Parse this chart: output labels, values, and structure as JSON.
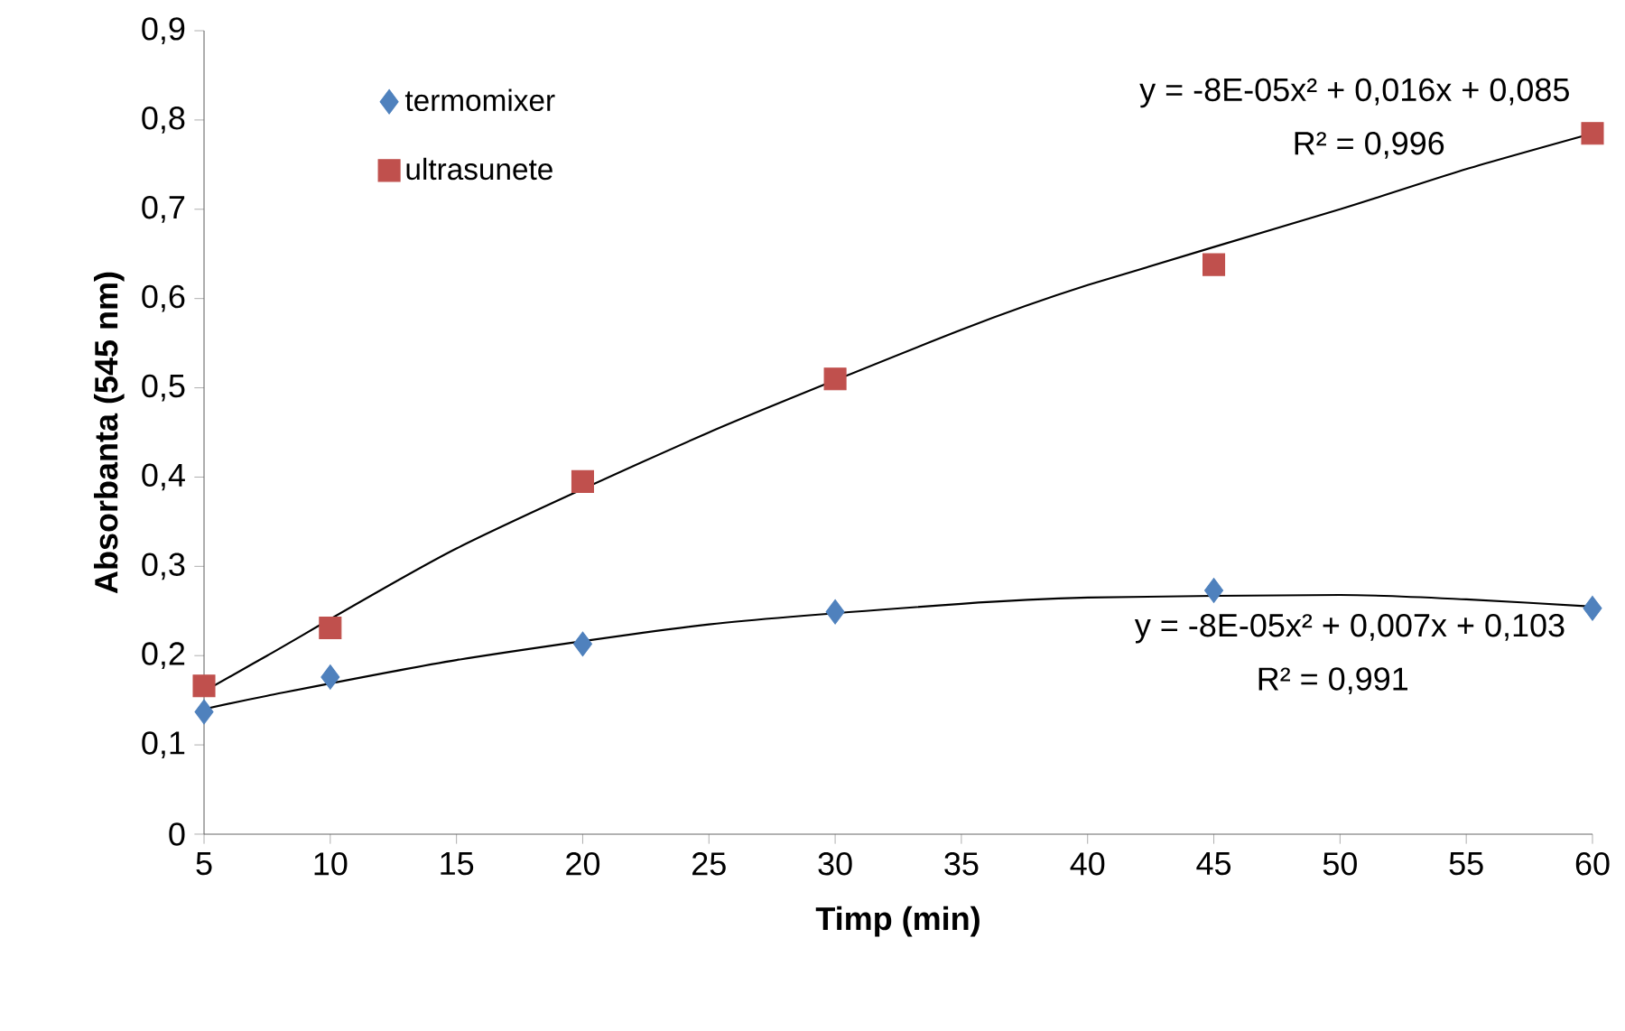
{
  "chart_data": {
    "type": "scatter",
    "xlabel": "Timp (min)",
    "ylabel": "Absorbanta (545 nm)",
    "xlim": [
      5,
      60
    ],
    "xticks": [
      5,
      10,
      15,
      20,
      25,
      30,
      35,
      40,
      45,
      50,
      55,
      60
    ],
    "ylim": [
      0,
      0.9
    ],
    "yticks": [
      {
        "value": 0,
        "label": "0"
      },
      {
        "value": 0.1,
        "label": "0,1"
      },
      {
        "value": 0.2,
        "label": "0,2"
      },
      {
        "value": 0.3,
        "label": "0,3"
      },
      {
        "value": 0.4,
        "label": "0,4"
      },
      {
        "value": 0.5,
        "label": "0,5"
      },
      {
        "value": 0.6,
        "label": "0,6"
      },
      {
        "value": 0.7,
        "label": "0,7"
      },
      {
        "value": 0.8,
        "label": "0,8"
      },
      {
        "value": 0.9,
        "label": "0,9"
      }
    ],
    "x": [
      5,
      10,
      20,
      30,
      45,
      60
    ],
    "series": [
      {
        "name": "termomixer",
        "color": "#4f81bd",
        "marker": "diamond",
        "values": [
          0.137,
          0.176,
          0.213,
          0.249,
          0.273,
          0.253
        ]
      },
      {
        "name": "ultrasunete",
        "color": "#c0504d",
        "marker": "square",
        "values": [
          0.166,
          0.231,
          0.395,
          0.51,
          0.638,
          0.785
        ]
      },
      {
        "type": "line",
        "color": "#000000",
        "marker": "none",
        "x": [
          5,
          7.5,
          15,
          25,
          35,
          40,
          50,
          55,
          60
        ],
        "values": [
          0.14,
          0.155,
          0.195,
          0.235,
          0.258,
          0.265,
          0.268,
          0.263,
          0.255
        ]
      },
      {
        "type": "line",
        "color": "#000000",
        "marker": "none",
        "x": [
          5,
          7.5,
          15,
          25,
          35,
          40,
          50,
          55,
          60
        ],
        "values": [
          0.16,
          0.2,
          0.32,
          0.45,
          0.565,
          0.615,
          0.7,
          0.745,
          0.785
        ]
      }
    ],
    "annotations": [
      "y = -8E-05x² + 0,016x + 0,085",
      "R² = 0,996",
      "y = -8E-05x² + 0,007x + 0,103",
      "R² = 0,991"
    ],
    "legend": "top left",
    "grid": false
  }
}
